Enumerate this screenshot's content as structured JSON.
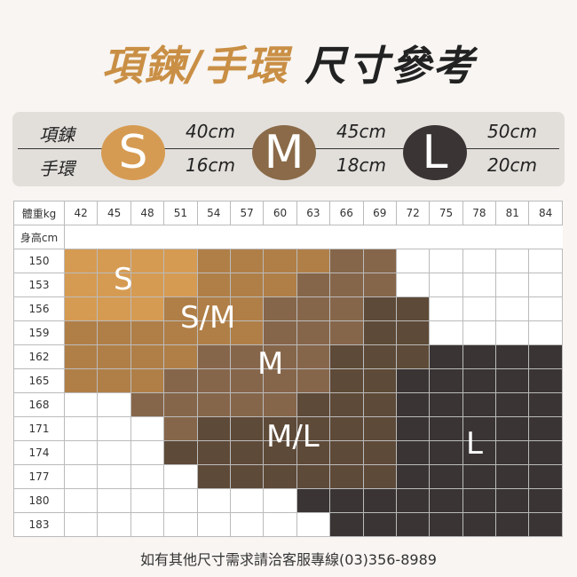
{
  "title": {
    "part1": "項鍊/手環",
    "part2": " 尺寸參考"
  },
  "size_band": {
    "row_labels": [
      "項鍊",
      "手環"
    ],
    "sizes": [
      {
        "label": "S",
        "color": "#d69b52",
        "necklace": "40cm",
        "bracelet": "16cm"
      },
      {
        "label": "M",
        "color": "#8a6a48",
        "necklace": "45cm",
        "bracelet": "18cm"
      },
      {
        "label": "L",
        "color": "#3a3434",
        "necklace": "50cm",
        "bracelet": "20cm"
      }
    ]
  },
  "grid": {
    "weight_header": "體重kg",
    "height_header": "身高cm",
    "weights": [
      "42",
      "45",
      "48",
      "51",
      "54",
      "57",
      "60",
      "63",
      "66",
      "69",
      "72",
      "75",
      "78",
      "81",
      "84"
    ],
    "heights": [
      "150",
      "153",
      "156",
      "159",
      "162",
      "165",
      "168",
      "171",
      "174",
      "177",
      "180",
      "183"
    ],
    "zone_colors": {
      "s": "#d69b52",
      "a": "#b07f47",
      "m": "#86664a",
      "b": "#5e4a38",
      "l": "#3a3434"
    },
    "zones": [
      "ssssaaaamm.....",
      "ssssaaammm.....",
      "sssaaammmbb....",
      "aaaaaammmbb....",
      "aaaammmmbbbllll",
      "aaammmmmbblllll",
      "..mmmmmbbblllll",
      "...mbbbbbblllll",
      "...bbbbbbblllll",
      "....bbbbbblllll",
      ".......llllllll",
      "........lllllll"
    ],
    "zone_labels": {
      "s": "S",
      "a": "S/M",
      "m": "M",
      "b": "M/L",
      "l": "L"
    }
  },
  "footer": "如有其他尺寸需求請洽客服專線(03)356-8989"
}
